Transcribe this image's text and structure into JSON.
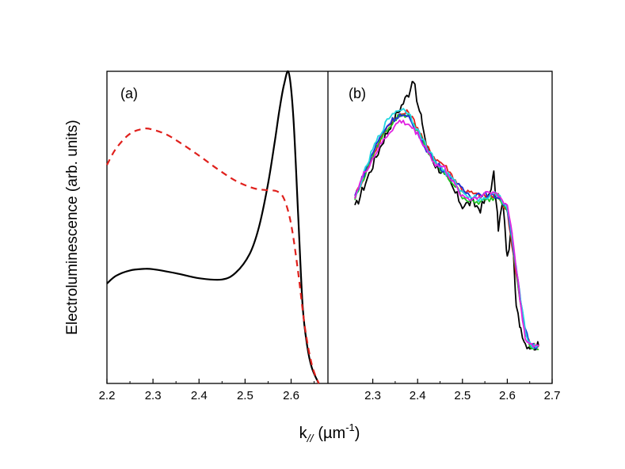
{
  "chart_data": {
    "type": "line",
    "ylabel": "Electroluminescence (arb. units)",
    "xlabel_main": "k",
    "xlabel_sub": "//",
    "xlabel_unit_pre": "(µm",
    "xlabel_unit_sup": "-1",
    "xlabel_unit_post": ")",
    "panels": [
      {
        "label": "(a)",
        "xlim": [
          2.2,
          2.68
        ],
        "ylim": [
          0,
          1.0
        ],
        "xticks": [
          "2.2",
          "2.3",
          "2.4",
          "2.5",
          "2.6"
        ],
        "xtick_values": [
          2.2,
          2.3,
          2.4,
          2.5,
          2.6
        ],
        "series": [
          {
            "name": "solid",
            "color": "#000000",
            "dash": "",
            "x": [
              2.2,
              2.22,
              2.25,
              2.28,
              2.3,
              2.35,
              2.4,
              2.45,
              2.48,
              2.51,
              2.53,
              2.55,
              2.565,
              2.575,
              2.585,
              2.595,
              2.605,
              2.615,
              2.625,
              2.635,
              2.645,
              2.66
            ],
            "y": [
              0.32,
              0.345,
              0.362,
              0.367,
              0.366,
              0.353,
              0.337,
              0.333,
              0.355,
              0.415,
              0.5,
              0.64,
              0.78,
              0.88,
              0.96,
              0.995,
              0.85,
              0.55,
              0.25,
              0.12,
              0.05,
              0.0
            ]
          },
          {
            "name": "dashed",
            "color": "#e0201c",
            "dash": "8,6",
            "x": [
              2.2,
              2.22,
              2.25,
              2.28,
              2.3,
              2.33,
              2.36,
              2.4,
              2.44,
              2.48,
              2.52,
              2.55,
              2.57,
              2.585,
              2.6,
              2.615,
              2.63,
              2.645,
              2.66
            ],
            "y": [
              0.7,
              0.753,
              0.8,
              0.816,
              0.813,
              0.797,
              0.77,
              0.73,
              0.687,
              0.649,
              0.625,
              0.619,
              0.615,
              0.59,
              0.51,
              0.36,
              0.18,
              0.06,
              0.0
            ]
          }
        ]
      },
      {
        "label": "(b)",
        "xlim": [
          2.2,
          2.7
        ],
        "ylim": [
          0,
          1.0
        ],
        "xticks": [
          "2.3",
          "2.4",
          "2.5",
          "2.6",
          "2.7"
        ],
        "xtick_values": [
          2.3,
          2.4,
          2.5,
          2.6,
          2.7
        ],
        "series": [
          {
            "name": "black",
            "color": "#000000",
            "x": [
              2.26,
              2.28,
              2.3,
              2.32,
              2.34,
              2.36,
              2.38,
              2.39,
              2.4,
              2.41,
              2.42,
              2.44,
              2.46,
              2.48,
              2.5,
              2.52,
              2.54,
              2.56,
              2.57,
              2.58,
              2.59,
              2.6,
              2.61,
              2.62,
              2.63,
              2.64,
              2.65,
              2.66,
              2.67
            ],
            "y": [
              0.56,
              0.63,
              0.7,
              0.77,
              0.83,
              0.88,
              0.93,
              0.98,
              0.89,
              0.84,
              0.76,
              0.7,
              0.67,
              0.62,
              0.57,
              0.58,
              0.56,
              0.61,
              0.67,
              0.5,
              0.58,
              0.4,
              0.5,
              0.24,
              0.18,
              0.13,
              0.12,
              0.12,
              0.12
            ]
          },
          {
            "name": "red",
            "color": "#e0201c",
            "x": [
              2.26,
              2.28,
              2.3,
              2.32,
              2.34,
              2.36,
              2.38,
              2.4,
              2.42,
              2.44,
              2.46,
              2.48,
              2.5,
              2.52,
              2.54,
              2.56,
              2.58,
              2.6,
              2.61,
              2.62,
              2.63,
              2.64,
              2.65,
              2.66,
              2.67
            ],
            "y": [
              0.6,
              0.66,
              0.73,
              0.79,
              0.84,
              0.86,
              0.87,
              0.82,
              0.76,
              0.72,
              0.7,
              0.66,
              0.62,
              0.61,
              0.6,
              0.6,
              0.6,
              0.55,
              0.45,
              0.35,
              0.25,
              0.16,
              0.13,
              0.12,
              0.12
            ]
          },
          {
            "name": "green",
            "color": "#22c322",
            "x": [
              2.26,
              2.28,
              2.3,
              2.32,
              2.34,
              2.36,
              2.38,
              2.4,
              2.42,
              2.44,
              2.46,
              2.48,
              2.5,
              2.52,
              2.54,
              2.56,
              2.58,
              2.6,
              2.61,
              2.62,
              2.63,
              2.64,
              2.65,
              2.66,
              2.67
            ],
            "y": [
              0.59,
              0.66,
              0.73,
              0.79,
              0.83,
              0.86,
              0.86,
              0.81,
              0.75,
              0.7,
              0.67,
              0.64,
              0.6,
              0.58,
              0.58,
              0.59,
              0.6,
              0.56,
              0.46,
              0.36,
              0.25,
              0.16,
              0.12,
              0.11,
              0.11
            ]
          },
          {
            "name": "blue",
            "color": "#1f2fd6",
            "x": [
              2.26,
              2.28,
              2.3,
              2.32,
              2.34,
              2.36,
              2.38,
              2.4,
              2.42,
              2.44,
              2.46,
              2.48,
              2.5,
              2.52,
              2.54,
              2.56,
              2.58,
              2.6,
              2.61,
              2.62,
              2.63,
              2.64,
              2.65,
              2.66,
              2.67
            ],
            "y": [
              0.6,
              0.67,
              0.74,
              0.8,
              0.84,
              0.86,
              0.85,
              0.8,
              0.75,
              0.71,
              0.68,
              0.65,
              0.62,
              0.6,
              0.61,
              0.6,
              0.6,
              0.56,
              0.47,
              0.37,
              0.26,
              0.17,
              0.13,
              0.12,
              0.12
            ]
          },
          {
            "name": "cyan",
            "color": "#21d6e0",
            "x": [
              2.26,
              2.28,
              2.3,
              2.32,
              2.34,
              2.36,
              2.38,
              2.4,
              2.42,
              2.44,
              2.46,
              2.48,
              2.5,
              2.52,
              2.54,
              2.56,
              2.58,
              2.6,
              2.61,
              2.62,
              2.63,
              2.64,
              2.65,
              2.66,
              2.67
            ],
            "y": [
              0.59,
              0.67,
              0.75,
              0.81,
              0.86,
              0.88,
              0.87,
              0.81,
              0.76,
              0.71,
              0.68,
              0.65,
              0.61,
              0.6,
              0.59,
              0.6,
              0.61,
              0.56,
              0.47,
              0.37,
              0.26,
              0.17,
              0.13,
              0.12,
              0.12
            ]
          },
          {
            "name": "magenta",
            "color": "#e021e0",
            "x": [
              2.26,
              2.28,
              2.3,
              2.32,
              2.34,
              2.36,
              2.38,
              2.4,
              2.42,
              2.44,
              2.46,
              2.48,
              2.5,
              2.52,
              2.54,
              2.56,
              2.58,
              2.6,
              2.61,
              2.62,
              2.63,
              2.64,
              2.65,
              2.66,
              2.67
            ],
            "y": [
              0.6,
              0.67,
              0.72,
              0.77,
              0.81,
              0.84,
              0.83,
              0.8,
              0.75,
              0.7,
              0.69,
              0.64,
              0.6,
              0.59,
              0.6,
              0.62,
              0.6,
              0.57,
              0.49,
              0.37,
              0.25,
              0.15,
              0.12,
              0.12,
              0.12
            ]
          }
        ]
      }
    ]
  }
}
